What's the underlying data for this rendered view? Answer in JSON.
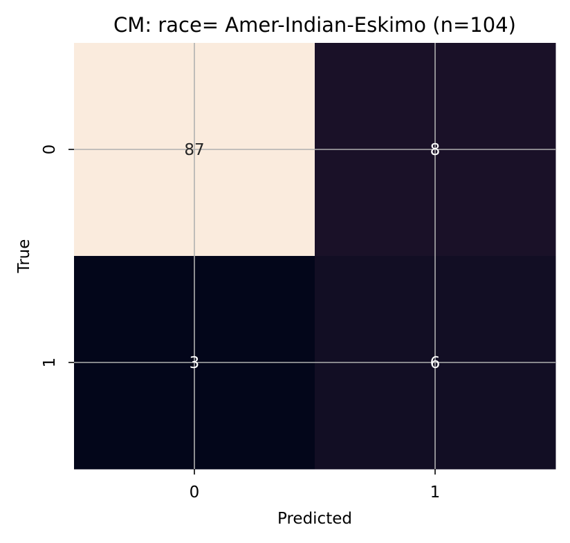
{
  "chart_data": {
    "type": "heatmap",
    "title": "CM: race= Amer-Indian-Eskimo (n=104)",
    "xlabel": "Predicted",
    "ylabel": "True",
    "x_categories": [
      "0",
      "1"
    ],
    "y_categories": [
      "0",
      "1"
    ],
    "values": [
      [
        87,
        8
      ],
      [
        3,
        6
      ]
    ],
    "cell_labels": [
      [
        "87",
        "8"
      ],
      [
        "3",
        "6"
      ]
    ],
    "color_min": 3,
    "color_max": 87,
    "colormap": [
      "#03051a",
      "#faebdd"
    ],
    "cell_colors": [
      [
        "#faebdd",
        "#1a1128"
      ],
      [
        "#03061a",
        "#120e24"
      ]
    ],
    "annotation_colors": {
      "dark": "#262626",
      "light": "#ffffff"
    },
    "grid": true,
    "colorbar": false
  }
}
